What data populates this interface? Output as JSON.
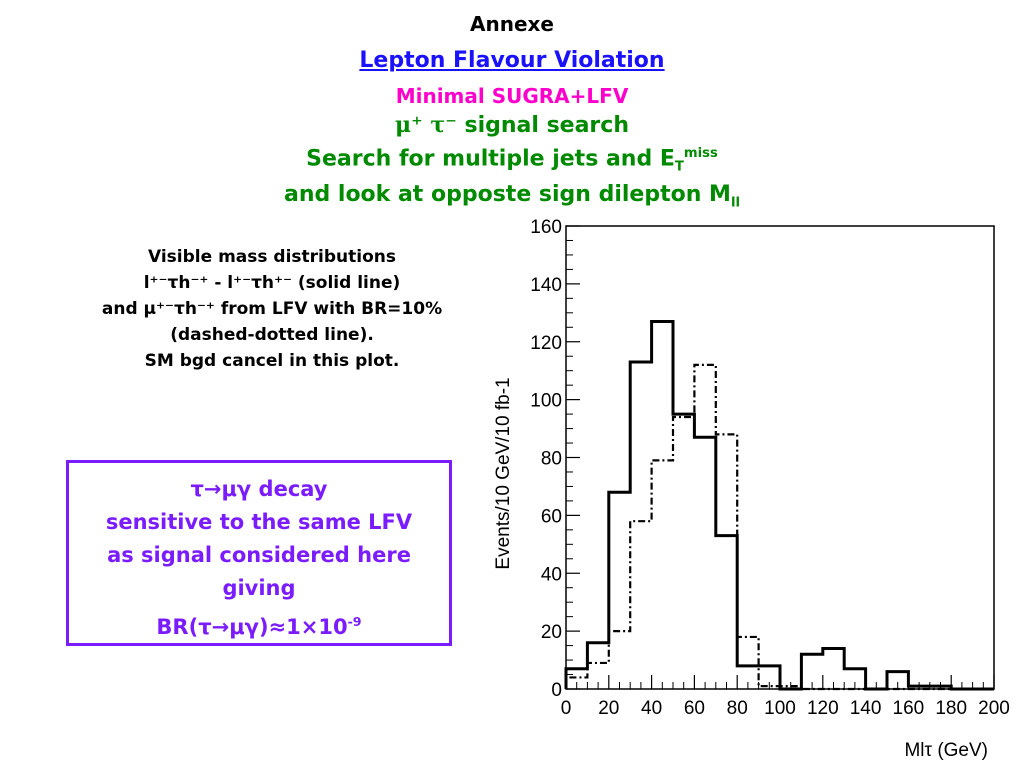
{
  "header": {
    "line1": "Annexe",
    "line2": "Lepton Flavour Violation",
    "line3": "Minimal SUGRA+LFV",
    "line4_sym": "μ⁺ τ⁻",
    "line4_text": " signal search",
    "line5_main": "Search for multiple jets and E",
    "line5_sub": "T",
    "line5_sup": "miss",
    "line6_main": "and look at opposte sign dilepton M",
    "line6_sub": "ll"
  },
  "description": {
    "line1": "Visible mass distributions",
    "line2": "l⁺⁻τh⁻⁺ - l⁺⁻τh⁺⁻ (solid line)",
    "line3": "and μ⁺⁻τh⁻⁺ from LFV with BR=10%",
    "line4": "(dashed-dotted line).",
    "line5": "SM bgd cancel in this plot."
  },
  "box": {
    "line1": "τ→μγ decay",
    "line2": "sensitive to the same LFV",
    "line3": "as signal considered here",
    "line4": "giving",
    "line5": "BR(τ→μγ)≈1×10",
    "line5_sup": "-9"
  },
  "chart_data": {
    "type": "histogram",
    "xlabel": "Mlτ (GeV)",
    "ylabel": "Events/10 GeV/10 fb-1",
    "xlim": [
      0,
      200
    ],
    "ylim": [
      0,
      160
    ],
    "xticks": [
      0,
      20,
      40,
      60,
      80,
      100,
      120,
      140,
      160,
      180,
      200
    ],
    "yticks": [
      0,
      20,
      40,
      60,
      80,
      100,
      120,
      140,
      160
    ],
    "bin_edges": [
      0,
      10,
      20,
      30,
      40,
      50,
      60,
      70,
      80,
      90,
      100,
      110,
      120,
      130,
      140,
      150,
      160,
      170,
      180,
      190,
      200
    ],
    "series": [
      {
        "style": "solid",
        "values": [
          7,
          16,
          68,
          113,
          127,
          95,
          87,
          53,
          8,
          8,
          0,
          12,
          14,
          7,
          0,
          6,
          1,
          1,
          0,
          0
        ]
      },
      {
        "style": "dash-dot",
        "values": [
          4,
          9,
          20,
          58,
          79,
          94,
          112,
          88,
          18,
          1,
          1,
          0,
          0,
          0,
          0,
          0,
          0,
          0,
          0,
          0
        ]
      }
    ]
  }
}
